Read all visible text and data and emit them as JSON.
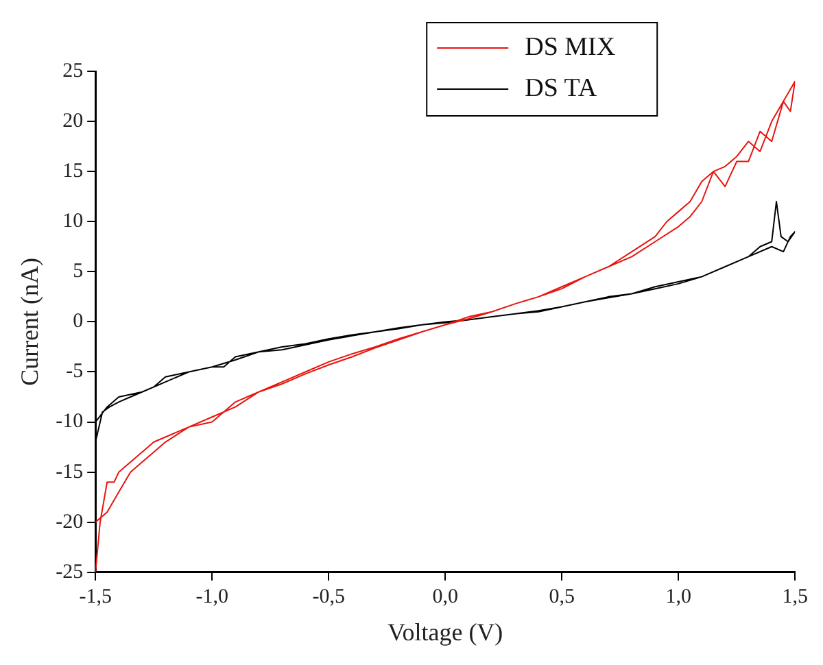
{
  "chart_data": {
    "type": "line",
    "xlabel": "Voltage (V)",
    "ylabel": "Current (nA)",
    "xlim": [
      -1.5,
      1.5
    ],
    "ylim": [
      -25,
      25
    ],
    "xticks": [
      {
        "value": -1.5,
        "label": "-1,5"
      },
      {
        "value": -1,
        "label": "-1,0"
      },
      {
        "value": -0.5,
        "label": "-0,5"
      },
      {
        "value": 0,
        "label": "0,0"
      },
      {
        "value": 0.5,
        "label": "0,5"
      },
      {
        "value": 1,
        "label": "1,0"
      },
      {
        "value": 1.5,
        "label": "1,5"
      }
    ],
    "yticks": [
      -25,
      -20,
      -15,
      -10,
      -5,
      0,
      5,
      10,
      15,
      20,
      25
    ],
    "grid": false,
    "legend": "top",
    "marker": "none",
    "line_style": "solid",
    "series": [
      {
        "name": "DS MIX",
        "color": "#e8140e",
        "x": [
          -1.5,
          -1.48,
          -1.45,
          -1.42,
          -1.4,
          -1.35,
          -1.3,
          -1.25,
          -1.2,
          -1.1,
          -1.0,
          -0.95,
          -0.9,
          -0.8,
          -0.7,
          -0.6,
          -0.5,
          -0.4,
          -0.3,
          -0.2,
          -0.1,
          0,
          0.1,
          0.2,
          0.3,
          0.4,
          0.5,
          0.6,
          0.7,
          0.8,
          0.9,
          0.95,
          1.0,
          1.05,
          1.1,
          1.15,
          1.2,
          1.25,
          1.3,
          1.35,
          1.4,
          1.45,
          1.5,
          1.48,
          1.45,
          1.4,
          1.35,
          1.3,
          1.25,
          1.2,
          1.15,
          1.1,
          1.05,
          1.0,
          0.9,
          0.8,
          0.7,
          0.6,
          0.5,
          0.4,
          0.3,
          0.2,
          0.1,
          0,
          -0.1,
          -0.2,
          -0.3,
          -0.4,
          -0.5,
          -0.6,
          -0.7,
          -0.8,
          -0.9,
          -1.0,
          -1.1,
          -1.2,
          -1.25,
          -1.3,
          -1.35,
          -1.4,
          -1.45,
          -1.5
        ],
        "values": [
          -25,
          -20,
          -16,
          -16,
          -15,
          -14,
          -13,
          -12,
          -11.5,
          -10.5,
          -10,
          -9,
          -8,
          -7,
          -6,
          -5,
          -4,
          -3.2,
          -2.5,
          -1.7,
          -1,
          -0.3,
          0.5,
          1,
          1.8,
          2.5,
          3.3,
          4.5,
          5.5,
          7,
          8.5,
          10,
          11,
          12,
          14,
          15,
          15.5,
          16.5,
          18,
          17,
          20,
          22,
          24,
          21,
          22,
          18,
          19,
          16,
          16,
          13.5,
          15,
          12,
          10.5,
          9.5,
          8,
          6.5,
          5.5,
          4.5,
          3.5,
          2.5,
          1.8,
          1,
          0.3,
          -0.3,
          -1,
          -1.8,
          -2.6,
          -3.5,
          -4.3,
          -5.2,
          -6.2,
          -7,
          -8.5,
          -9.5,
          -10.5,
          -12,
          -13,
          -14,
          -15,
          -17,
          -19,
          -20
        ]
      },
      {
        "name": "DS TA",
        "color": "#000000",
        "x": [
          -1.5,
          -1.47,
          -1.44,
          -1.4,
          -1.35,
          -1.3,
          -1.25,
          -1.2,
          -1.1,
          -1.0,
          -0.95,
          -0.9,
          -0.8,
          -0.7,
          -0.6,
          -0.5,
          -0.4,
          -0.3,
          -0.2,
          -0.1,
          0,
          0.1,
          0.2,
          0.3,
          0.4,
          0.5,
          0.6,
          0.7,
          0.8,
          0.9,
          1.0,
          1.1,
          1.2,
          1.3,
          1.35,
          1.4,
          1.42,
          1.44,
          1.47,
          1.5,
          1.48,
          1.45,
          1.4,
          1.3,
          1.2,
          1.1,
          1.0,
          0.9,
          0.8,
          0.7,
          0.6,
          0.5,
          0.4,
          0.3,
          0.2,
          0.1,
          0,
          -0.1,
          -0.2,
          -0.3,
          -0.4,
          -0.5,
          -0.6,
          -0.7,
          -0.8,
          -0.9,
          -1.0,
          -1.1,
          -1.2,
          -1.3,
          -1.4,
          -1.45,
          -1.5
        ],
        "values": [
          -12,
          -9,
          -8.5,
          -8,
          -7.5,
          -7,
          -6.5,
          -5.5,
          -5,
          -4.5,
          -4.5,
          -3.5,
          -3,
          -2.5,
          -2.2,
          -1.7,
          -1.3,
          -1,
          -0.7,
          -0.3,
          -0.1,
          0.2,
          0.5,
          0.8,
          1,
          1.5,
          2,
          2.5,
          2.8,
          3.5,
          4,
          4.5,
          5.5,
          6.5,
          7.5,
          8,
          12,
          8.5,
          8,
          9,
          8.5,
          7,
          7.5,
          6.5,
          5.5,
          4.5,
          3.8,
          3.3,
          2.8,
          2.4,
          2,
          1.5,
          1.1,
          0.8,
          0.5,
          0.2,
          0,
          -0.3,
          -0.6,
          -1,
          -1.4,
          -1.8,
          -2.3,
          -2.8,
          -3,
          -3.8,
          -4.5,
          -5,
          -6,
          -7,
          -7.5,
          -8.5,
          -10
        ]
      }
    ]
  }
}
